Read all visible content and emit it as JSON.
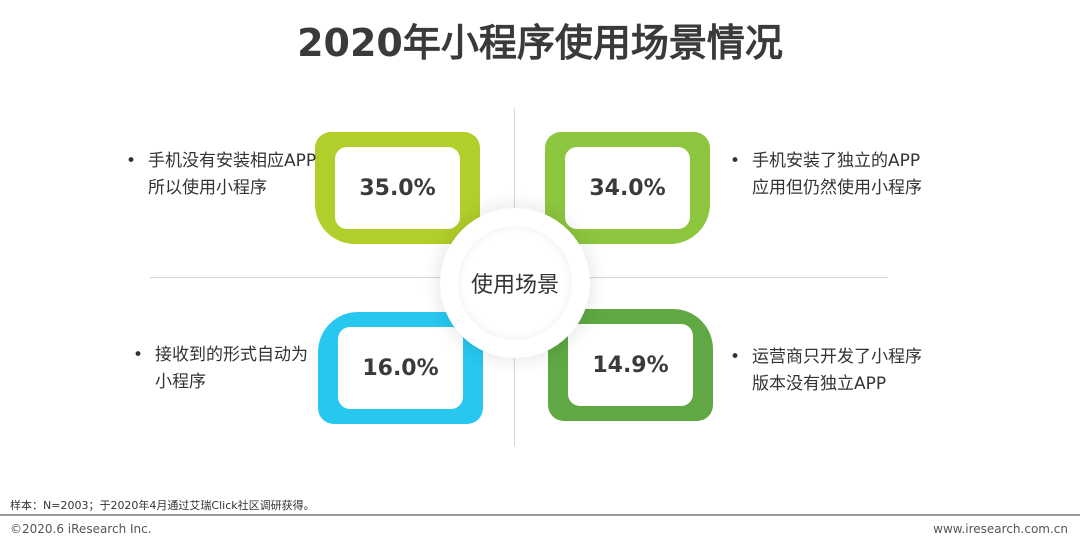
{
  "title": "2020年小程序使用场景情况",
  "center_label": "使用场景",
  "quadrants": [
    {
      "value": "35.0%",
      "description": "手机没有安装相应APP所以使用小程序",
      "color": "#b1cf2a"
    },
    {
      "value": "34.0%",
      "description": "手机安装了独立的APP应用但仍然使用小程序",
      "color": "#8cc63f"
    },
    {
      "value": "16.0%",
      "description": "接收到的形式自动为小程序",
      "color": "#27c7f0"
    },
    {
      "value": "14.9%",
      "description": "运营商只开发了小程序版本没有独立APP",
      "color": "#5fa844"
    }
  ],
  "bullet": "•",
  "note": "样本：N=2003；于2020年4月通过艾瑞Click社区调研获得。",
  "copyright": "©2020.6 iResearch Inc.",
  "website": "www.iresearch.com.cn"
}
